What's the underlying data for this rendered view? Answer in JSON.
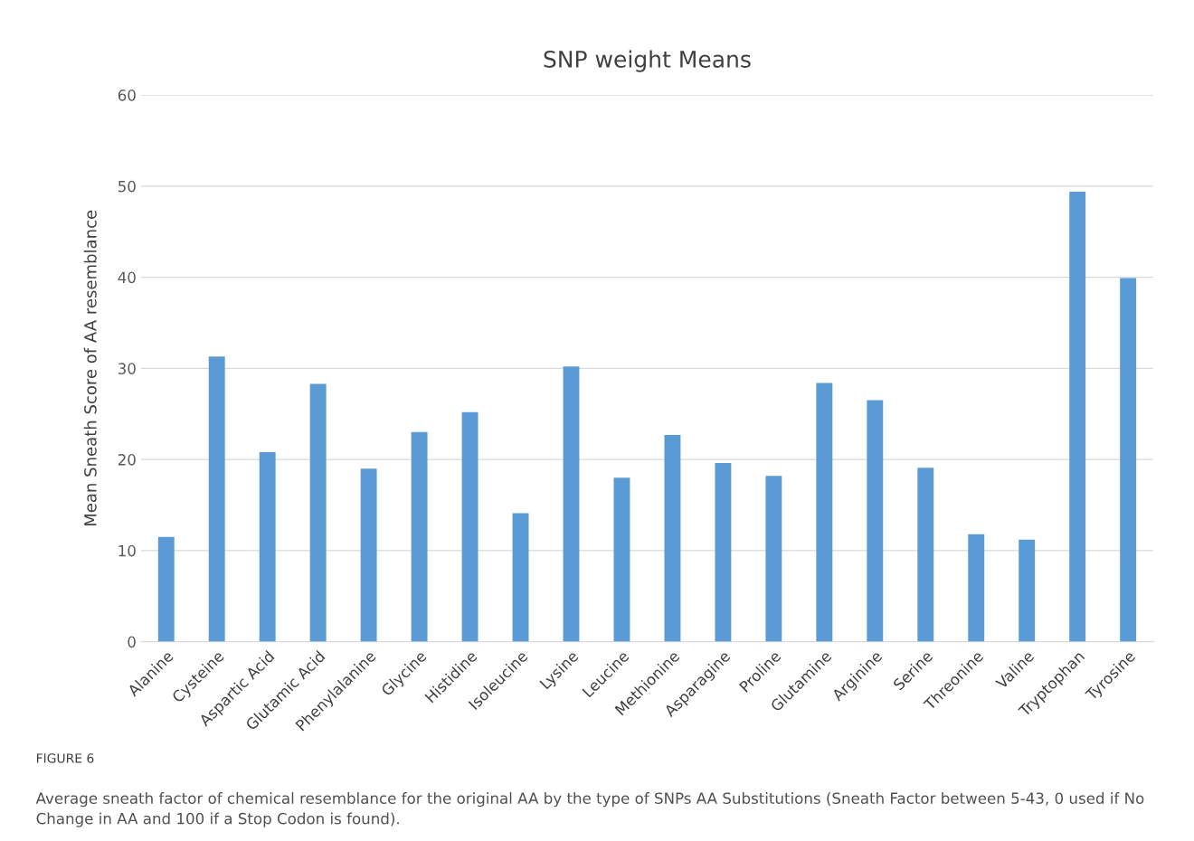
{
  "chart_data": {
    "type": "bar",
    "title": "SNP weight Means",
    "ylabel": "Mean Sneath Score of AA resemblance",
    "categories": [
      "Alanine",
      "Cysteine",
      "Aspartic Acid",
      "Glutamic Acid",
      "Phenylalanine",
      "Glycine",
      "Histidine",
      "Isoleucine",
      "Lysine",
      "Leucine",
      "Methionine",
      "Asparagine",
      "Proline",
      "Glutamine",
      "Arginine",
      "Serine",
      "Threonine",
      "Valine",
      "Tryptophan",
      "Tyrosine"
    ],
    "values": [
      11.5,
      31.3,
      20.8,
      28.3,
      19.0,
      23.0,
      25.2,
      14.1,
      30.2,
      18.0,
      22.7,
      19.6,
      18.2,
      28.4,
      26.5,
      19.1,
      11.8,
      11.2,
      49.4,
      39.9
    ],
    "color": "#5b9bd5",
    "ylim": [
      0,
      60
    ],
    "yticks": [
      0,
      10,
      20,
      30,
      40,
      50,
      60
    ],
    "grid": "y",
    "legend": false,
    "annotations": [
      "FIGURE 6",
      "Average sneath factor of chemical resemblance for the original AA by the type of SNPs AA Substitutions (Sneath Factor between 5-43, 0 used if No Change in AA and 100 if a Stop Codon is found)."
    ]
  }
}
